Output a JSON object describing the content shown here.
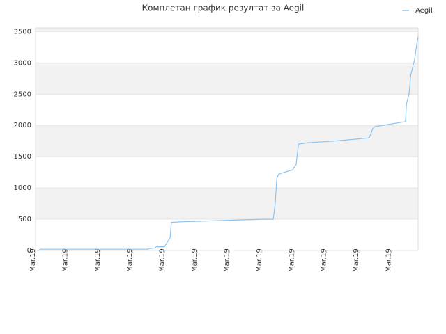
{
  "chart_data": {
    "type": "line",
    "title": "Комплетан график резултат за Aegil",
    "x": [
      0.9,
      1.5,
      34.7,
      35.3,
      36.9,
      37.3,
      39.9,
      40.3,
      41.6,
      42.0,
      45.5,
      51.9,
      58.0,
      64.4,
      70.5,
      73.5,
      74.1,
      74.6,
      75.2,
      79.5,
      80.6,
      81.3,
      83.8,
      92.5,
      98.9,
      103.2,
      104.3,
      104.9,
      114.4,
      114.7,
      115.5,
      116.0,
      117.2,
      117.9,
      118.3
    ],
    "series": [
      {
        "name": "Aegil",
        "color": "#8ec3ee",
        "values": [
          0,
          20,
          20,
          30,
          40,
          60,
          60,
          100,
          200,
          450,
          460,
          470,
          480,
          490,
          500,
          500,
          750,
          1150,
          1220,
          1290,
          1380,
          1700,
          1720,
          1750,
          1780,
          1800,
          1950,
          1980,
          2060,
          2350,
          2500,
          2800,
          3050,
          3300,
          3420
        ]
      }
    ],
    "xlim": [
      0,
      118.3
    ],
    "xticks": [
      {
        "value": 0,
        "label": "Mar.19"
      },
      {
        "value": 10,
        "label": "Mar.19"
      },
      {
        "value": 20,
        "label": "Mar.19"
      },
      {
        "value": 30,
        "label": "Mar.19"
      },
      {
        "value": 40,
        "label": "Mar.19"
      },
      {
        "value": 50,
        "label": "Mar.19"
      },
      {
        "value": 60,
        "label": "Mar.19"
      },
      {
        "value": 70,
        "label": "Mar.19"
      },
      {
        "value": 80,
        "label": "Mar.19"
      },
      {
        "value": 90,
        "label": "Mar.19"
      },
      {
        "value": 100,
        "label": "Mar.19"
      },
      {
        "value": 110,
        "label": "Mar.19"
      }
    ],
    "ylim": [
      0,
      3560
    ],
    "yticks": [
      0,
      500,
      1000,
      1500,
      2000,
      2500,
      3000,
      3500
    ],
    "grid": true,
    "legend": "top-right"
  }
}
